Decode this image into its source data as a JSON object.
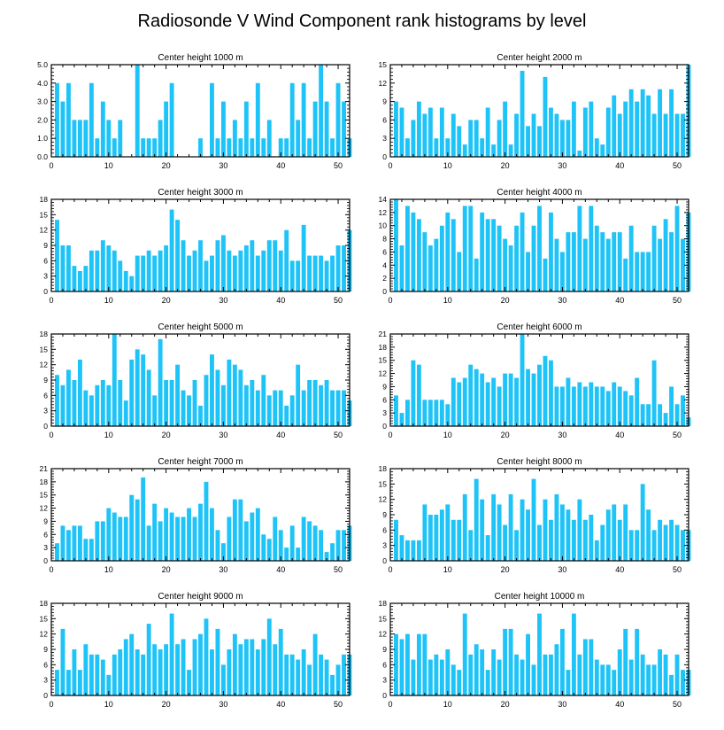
{
  "title": "Radiosonde V Wind Component rank histograms by level",
  "bar_color": "#1ec3f7",
  "chart_data": [
    {
      "type": "bar",
      "title": "Center height 1000 m",
      "xlim": [
        0,
        52
      ],
      "ylim": [
        0,
        5
      ],
      "xticks": [
        0,
        10,
        20,
        30,
        40,
        50
      ],
      "yticks": [
        0,
        1,
        2,
        3,
        4,
        5
      ],
      "ytick_labels": [
        "0.0",
        "1.0",
        "2.0",
        "3.0",
        "4.0",
        "5.0"
      ],
      "values": [
        4,
        3,
        4,
        2,
        2,
        2,
        4,
        1,
        3,
        2,
        1,
        2,
        0,
        0,
        5,
        1,
        1,
        1,
        2,
        3,
        4,
        0,
        0,
        0,
        0,
        1,
        0,
        4,
        1,
        3,
        1,
        2,
        1,
        3,
        1,
        4,
        1,
        2,
        0,
        1,
        1,
        4,
        2,
        4,
        1,
        3,
        5,
        3,
        1,
        4,
        3,
        1
      ]
    },
    {
      "type": "bar",
      "title": "Center height 2000 m",
      "xlim": [
        0,
        52
      ],
      "ylim": [
        0,
        15
      ],
      "xticks": [
        0,
        10,
        20,
        30,
        40,
        50
      ],
      "yticks": [
        0,
        3,
        6,
        9,
        12,
        15
      ],
      "ytick_labels": [
        "0",
        "3",
        "6",
        "9",
        "12",
        "15"
      ],
      "values": [
        9,
        8,
        3,
        6,
        9,
        7,
        8,
        3,
        8,
        3,
        7,
        5,
        2,
        6,
        6,
        3,
        8,
        2,
        6,
        9,
        2,
        7,
        14,
        5,
        7,
        5,
        13,
        8,
        7,
        6,
        6,
        9,
        1,
        8,
        9,
        3,
        2,
        8,
        10,
        7,
        9,
        11,
        9,
        11,
        10,
        7,
        11,
        7,
        11,
        7,
        7,
        15
      ]
    },
    {
      "type": "bar",
      "title": "Center height 3000 m",
      "xlim": [
        0,
        52
      ],
      "ylim": [
        0,
        18
      ],
      "xticks": [
        0,
        10,
        20,
        30,
        40,
        50
      ],
      "yticks": [
        0,
        3,
        6,
        9,
        12,
        15,
        18
      ],
      "ytick_labels": [
        "0",
        "3",
        "6",
        "9",
        "12",
        "15",
        "18"
      ],
      "values": [
        14,
        9,
        9,
        5,
        4,
        5,
        8,
        8,
        10,
        9,
        8,
        6,
        4,
        3,
        7,
        7,
        8,
        7,
        8,
        9,
        16,
        14,
        10,
        7,
        8,
        10,
        6,
        7,
        10,
        11,
        8,
        7,
        8,
        9,
        10,
        7,
        8,
        10,
        10,
        8,
        12,
        6,
        6,
        13,
        7,
        7,
        7,
        6,
        7,
        9,
        9,
        12
      ]
    },
    {
      "type": "bar",
      "title": "Center height 4000 m",
      "xlim": [
        0,
        52
      ],
      "ylim": [
        0,
        14
      ],
      "xticks": [
        0,
        10,
        20,
        30,
        40,
        50
      ],
      "yticks": [
        0,
        2,
        4,
        6,
        8,
        10,
        12,
        14
      ],
      "ytick_labels": [
        "0",
        "2",
        "4",
        "6",
        "8",
        "10",
        "12",
        "14"
      ],
      "values": [
        14,
        7,
        13,
        12,
        11,
        9,
        7,
        8,
        10,
        12,
        11,
        6,
        13,
        13,
        5,
        12,
        11,
        11,
        10,
        8,
        7,
        10,
        12,
        6,
        10,
        13,
        5,
        12,
        8,
        6,
        9,
        9,
        13,
        8,
        13,
        10,
        9,
        8,
        9,
        9,
        5,
        10,
        6,
        6,
        6,
        10,
        8,
        11,
        9,
        13,
        8,
        12
      ]
    },
    {
      "type": "bar",
      "title": "Center height 5000 m",
      "xlim": [
        0,
        52
      ],
      "ylim": [
        0,
        18
      ],
      "xticks": [
        0,
        10,
        20,
        30,
        40,
        50
      ],
      "yticks": [
        0,
        3,
        6,
        9,
        12,
        15,
        18
      ],
      "ytick_labels": [
        "0",
        "3",
        "6",
        "9",
        "12",
        "15",
        "18"
      ],
      "values": [
        10,
        8,
        11,
        9,
        13,
        7,
        6,
        8,
        9,
        8,
        18,
        9,
        5,
        13,
        15,
        14,
        11,
        6,
        17,
        9,
        9,
        12,
        7,
        6,
        9,
        4,
        10,
        14,
        11,
        8,
        13,
        12,
        11,
        8,
        9,
        7,
        10,
        6,
        7,
        7,
        4,
        6,
        12,
        7,
        9,
        9,
        8,
        9,
        7,
        7,
        7,
        5
      ]
    },
    {
      "type": "bar",
      "title": "Center height 6000 m",
      "xlim": [
        0,
        52
      ],
      "ylim": [
        0,
        21
      ],
      "xticks": [
        0,
        10,
        20,
        30,
        40,
        50
      ],
      "yticks": [
        0,
        3,
        6,
        9,
        12,
        15,
        18,
        21
      ],
      "ytick_labels": [
        "0",
        "3",
        "6",
        "9",
        "12",
        "15",
        "18",
        "21"
      ],
      "values": [
        7,
        3,
        6,
        15,
        14,
        6,
        6,
        6,
        6,
        5,
        11,
        10,
        11,
        14,
        13,
        12,
        10,
        11,
        9,
        12,
        12,
        11,
        21,
        13,
        12,
        14,
        16,
        15,
        9,
        9,
        11,
        9,
        10,
        9,
        10,
        9,
        9,
        8,
        10,
        9,
        8,
        7,
        11,
        5,
        5,
        15,
        5,
        3,
        9,
        5,
        7,
        2
      ]
    },
    {
      "type": "bar",
      "title": "Center height 7000 m",
      "xlim": [
        0,
        52
      ],
      "ylim": [
        0,
        21
      ],
      "xticks": [
        0,
        10,
        20,
        30,
        40,
        50
      ],
      "yticks": [
        0,
        3,
        6,
        9,
        12,
        15,
        18,
        21
      ],
      "ytick_labels": [
        "0",
        "3",
        "6",
        "9",
        "12",
        "15",
        "18",
        "21"
      ],
      "values": [
        4,
        8,
        7,
        8,
        8,
        5,
        5,
        9,
        9,
        12,
        11,
        10,
        10,
        15,
        14,
        19,
        8,
        13,
        9,
        12,
        11,
        10,
        10,
        12,
        10,
        13,
        18,
        12,
        7,
        4,
        10,
        14,
        14,
        9,
        11,
        12,
        6,
        5,
        10,
        7,
        3,
        8,
        3,
        10,
        9,
        8,
        7,
        2,
        4,
        7,
        7,
        8
      ]
    },
    {
      "type": "bar",
      "title": "Center height 8000 m",
      "xlim": [
        0,
        52
      ],
      "ylim": [
        0,
        18
      ],
      "xticks": [
        0,
        10,
        20,
        30,
        40,
        50
      ],
      "yticks": [
        0,
        3,
        6,
        9,
        12,
        15,
        18
      ],
      "ytick_labels": [
        "0",
        "3",
        "6",
        "9",
        "12",
        "15",
        "18"
      ],
      "values": [
        8,
        5,
        4,
        4,
        4,
        11,
        9,
        9,
        10,
        11,
        8,
        8,
        13,
        6,
        16,
        12,
        5,
        13,
        11,
        7,
        13,
        6,
        12,
        10,
        16,
        7,
        12,
        8,
        13,
        11,
        10,
        8,
        12,
        8,
        9,
        4,
        7,
        10,
        11,
        8,
        11,
        6,
        6,
        15,
        10,
        6,
        8,
        7,
        8,
        7,
        6,
        6
      ]
    },
    {
      "type": "bar",
      "title": "Center height 9000 m",
      "xlim": [
        0,
        52
      ],
      "ylim": [
        0,
        18
      ],
      "xticks": [
        0,
        10,
        20,
        30,
        40,
        50
      ],
      "yticks": [
        0,
        3,
        6,
        9,
        12,
        15,
        18
      ],
      "ytick_labels": [
        "0",
        "3",
        "6",
        "9",
        "12",
        "15",
        "18"
      ],
      "values": [
        5,
        13,
        5,
        9,
        5,
        10,
        8,
        8,
        7,
        4,
        8,
        9,
        11,
        12,
        9,
        8,
        14,
        10,
        9,
        10,
        16,
        10,
        11,
        5,
        11,
        12,
        15,
        9,
        13,
        6,
        9,
        12,
        10,
        11,
        11,
        9,
        11,
        15,
        10,
        13,
        8,
        8,
        7,
        9,
        6,
        12,
        8,
        7,
        4,
        6,
        8,
        8
      ]
    },
    {
      "type": "bar",
      "title": "Center height 10000 m",
      "xlim": [
        0,
        52
      ],
      "ylim": [
        0,
        18
      ],
      "xticks": [
        0,
        10,
        20,
        30,
        40,
        50
      ],
      "yticks": [
        0,
        3,
        6,
        9,
        12,
        15,
        18
      ],
      "ytick_labels": [
        "0",
        "3",
        "6",
        "9",
        "12",
        "15",
        "18"
      ],
      "values": [
        12,
        11,
        12,
        7,
        12,
        12,
        7,
        8,
        7,
        9,
        6,
        5,
        16,
        8,
        10,
        9,
        5,
        9,
        7,
        13,
        13,
        8,
        7,
        12,
        6,
        16,
        8,
        8,
        10,
        13,
        5,
        16,
        8,
        11,
        11,
        7,
        6,
        6,
        5,
        9,
        13,
        7,
        13,
        8,
        6,
        6,
        9,
        8,
        4,
        8,
        5,
        5
      ]
    }
  ]
}
